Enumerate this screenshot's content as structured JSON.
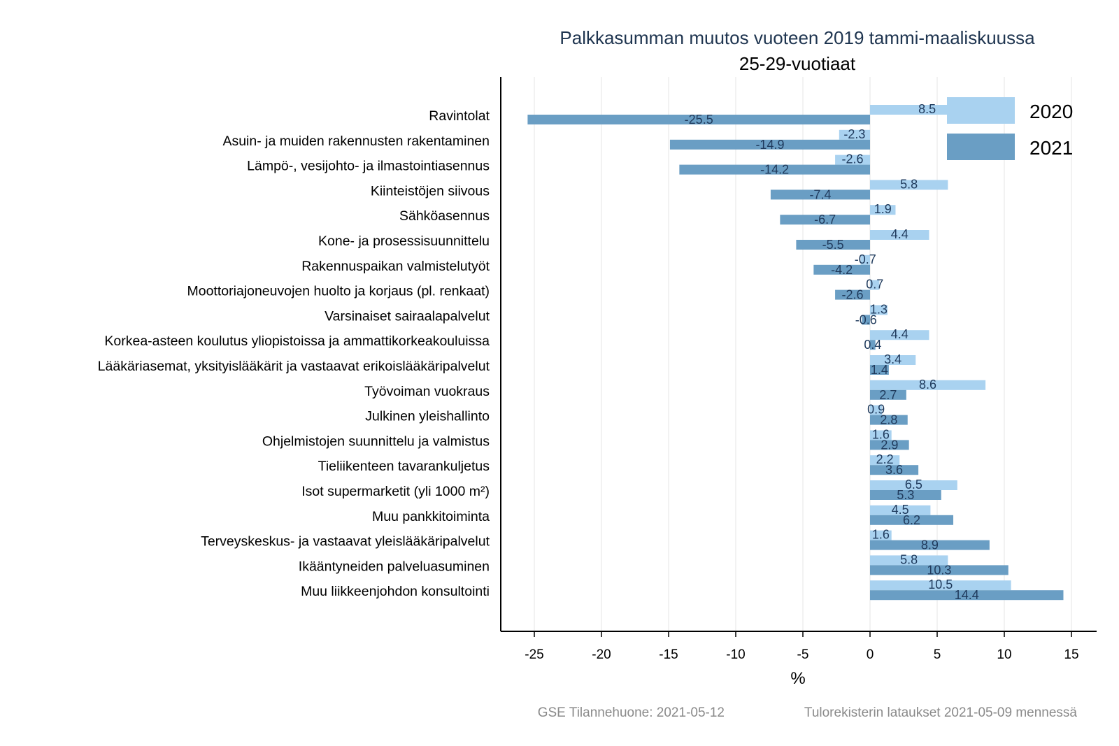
{
  "chart_data": {
    "type": "bar",
    "orientation": "horizontal",
    "title": "Palkkasumman muutos vuoteen 2019 tammi-maaliskuussa",
    "subtitle": "25-29-vuotiaat",
    "xlabel": "%",
    "ylabel": "",
    "xlim": [
      -26,
      17
    ],
    "xticks": [
      "-25",
      "-20",
      "-15",
      "-10",
      "-5",
      "0",
      "5",
      "10",
      "15"
    ],
    "legend_position": "top-right",
    "categories": [
      "Ravintolat",
      "Asuin- ja muiden rakennusten rakentaminen",
      "Lämpö-, vesijohto- ja ilmastointiasennus",
      "Kiinteistöjen siivous",
      "Sähköasennus",
      "Kone- ja prosessisuunnittelu",
      "Rakennuspaikan valmistelutyöt",
      "Moottoriajoneuvojen huolto ja korjaus (pl. renkaat)",
      "Varsinaiset sairaalapalvelut",
      "Korkea-asteen koulutus yliopistoissa ja ammattikorkeakouluissa",
      "Lääkäriasemat, yksityislääkärit ja vastaavat erikoislääkäripalvelut",
      "Työvoiman vuokraus",
      "Julkinen yleishallinto",
      "Ohjelmistojen suunnittelu ja valmistus",
      "Tieliikenteen tavarankuljetus",
      "Isot supermarketit (yli 1000 m²)",
      "Muu pankkitoiminta",
      "Terveyskeskus- ja vastaavat yleislääkäripalvelut",
      "Ikääntyneiden palveluasuminen",
      "Muu liikkeenjohdon konsultointi"
    ],
    "series": [
      {
        "name": "2020",
        "color": "#a9d2f0",
        "values": [
          8.5,
          -2.3,
          -2.6,
          5.8,
          1.9,
          4.4,
          -0.7,
          0.7,
          1.3,
          4.4,
          3.4,
          8.6,
          0.9,
          1.6,
          2.2,
          6.5,
          4.5,
          1.6,
          5.8,
          10.5
        ],
        "labels": [
          "8.5",
          "-2.3",
          "-2.6",
          "5.8",
          "1.9",
          "4.4",
          "-0.7",
          "0.7",
          "1.3",
          "4.4",
          "3.4",
          "8.6",
          "0.9",
          "1.6",
          "2.2",
          "6.5",
          "4.5",
          "1.6",
          "5.8",
          "10.5"
        ]
      },
      {
        "name": "2021",
        "color": "#6a9ec4",
        "values": [
          -25.5,
          -14.9,
          -14.2,
          -7.4,
          -6.7,
          -5.5,
          -4.2,
          -2.6,
          -0.6,
          0.4,
          1.4,
          2.7,
          2.8,
          2.9,
          3.6,
          5.3,
          6.2,
          8.9,
          10.3,
          14.4
        ],
        "labels": [
          "-25.5",
          "-14.9",
          "-14.2",
          "-7.4",
          "-6.7",
          "-5.5",
          "-4.2",
          "-2.6",
          "-0.6",
          "0.4",
          "1.4",
          "2.7",
          "2.8",
          "2.9",
          "3.6",
          "5.3",
          "6.2",
          "8.9",
          "10.3",
          "14.4"
        ]
      }
    ],
    "footer": {
      "left": "GSE Tilannehuone: 2021-05-12",
      "right": "Tulorekisterin lataukset 2021-05-09 mennessä"
    }
  }
}
